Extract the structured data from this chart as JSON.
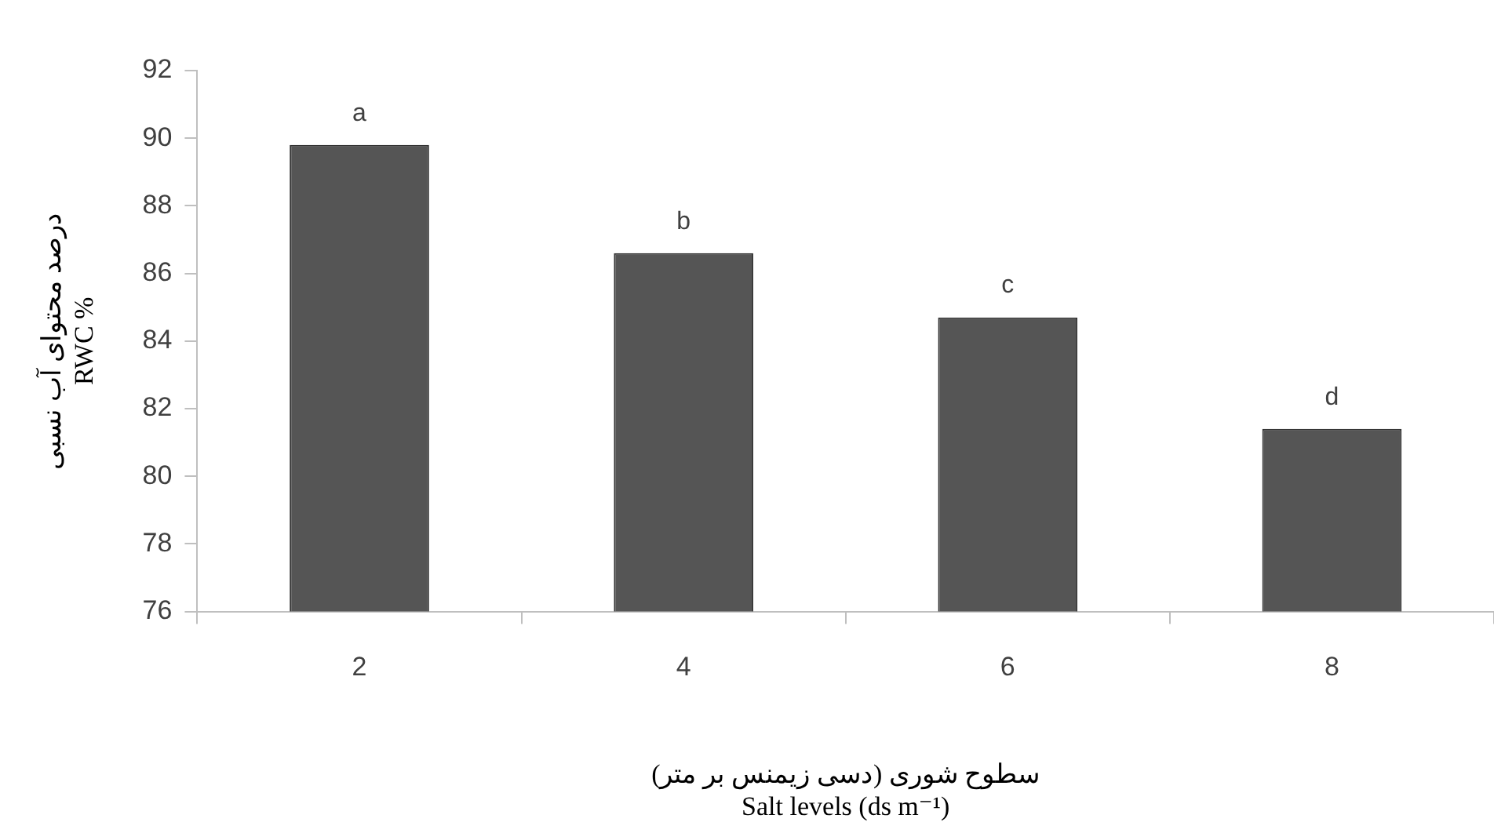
{
  "chart_data": {
    "type": "bar",
    "xlabel": "سطوح شوری (دسی زیمنس بر متر)\nSalt levels (ds m⁻¹)",
    "ylabel": "درصد محتوای آب نسبی\nRWC %",
    "categories": [
      "2",
      "4",
      "6",
      "8"
    ],
    "values": [
      89.8,
      86.6,
      84.7,
      81.4
    ],
    "color": "#555555",
    "ylim": [
      76,
      92
    ],
    "yticks": [
      76,
      78,
      80,
      82,
      84,
      86,
      88,
      90,
      92
    ],
    "grid": false,
    "legend": false,
    "annotations": [
      {
        "text": "a",
        "x": "2",
        "y": 89.8
      },
      {
        "text": "b",
        "x": "4",
        "y": 86.6
      },
      {
        "text": "c",
        "x": "6",
        "y": 84.7
      },
      {
        "text": "d",
        "x": "8",
        "y": 81.4
      }
    ]
  }
}
